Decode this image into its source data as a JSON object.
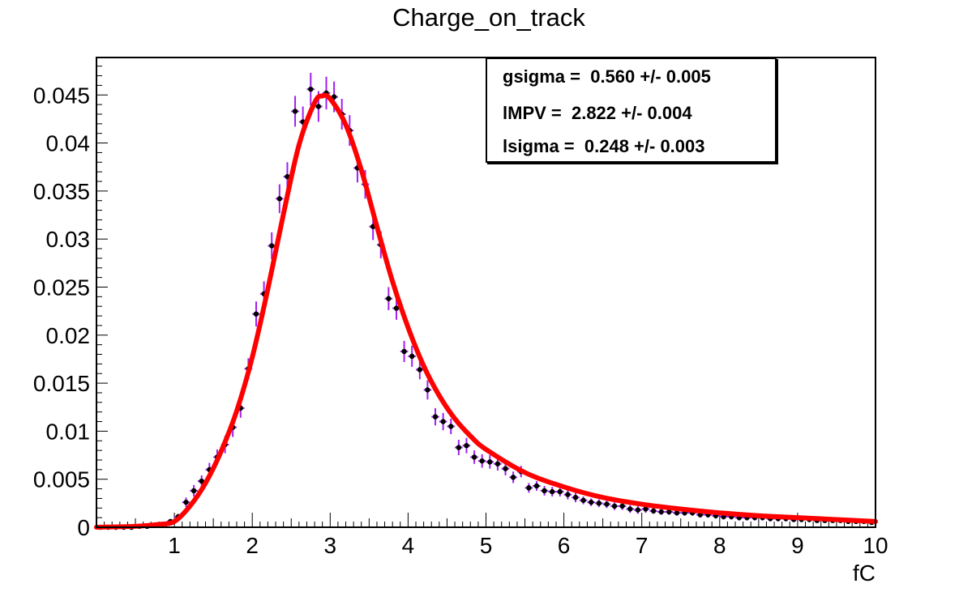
{
  "chart_data": {
    "type": "scatter",
    "title": "Charge_on_track",
    "xlabel": "fC",
    "ylabel": "",
    "xlim": [
      0,
      10
    ],
    "ylim": [
      0,
      0.0489
    ],
    "grid": false,
    "x_ticks": [
      1,
      2,
      3,
      4,
      5,
      6,
      7,
      8,
      9,
      10
    ],
    "y_ticks": [
      0,
      0.005,
      0.01,
      0.015,
      0.02,
      0.025,
      0.03,
      0.035,
      0.04,
      0.045
    ],
    "y_tick_labels": [
      "0",
      "0.005",
      "0.01",
      "0.015",
      "0.02",
      "0.025",
      "0.03",
      "0.035",
      "0.04",
      "0.045"
    ],
    "series": [
      {
        "kind": "data_points_with_error_bars",
        "marker_color": "#000000",
        "errorbar_color": "#a020f0",
        "x": [
          0.05,
          0.15,
          0.25,
          0.35,
          0.45,
          0.55,
          0.65,
          0.75,
          0.85,
          0.95,
          1.05,
          1.15,
          1.25,
          1.35,
          1.45,
          1.55,
          1.65,
          1.75,
          1.85,
          1.95,
          2.05,
          2.15,
          2.25,
          2.35,
          2.45,
          2.55,
          2.65,
          2.75,
          2.85,
          2.95,
          3.05,
          3.15,
          3.25,
          3.35,
          3.45,
          3.55,
          3.65,
          3.75,
          3.85,
          3.95,
          4.05,
          4.15,
          4.25,
          4.35,
          4.45,
          4.55,
          4.65,
          4.75,
          4.85,
          4.95,
          5.05,
          5.15,
          5.25,
          5.35,
          5.45,
          5.55,
          5.65,
          5.75,
          5.85,
          5.95,
          6.05,
          6.15,
          6.25,
          6.35,
          6.45,
          6.55,
          6.65,
          6.75,
          6.85,
          6.95,
          7.05,
          7.15,
          7.25,
          7.35,
          7.45,
          7.55,
          7.65,
          7.75,
          7.85,
          7.95,
          8.05,
          8.15,
          8.25,
          8.35,
          8.45,
          8.55,
          8.65,
          8.75,
          8.85,
          8.95,
          9.05,
          9.15,
          9.25,
          9.35,
          9.45,
          9.55,
          9.65,
          9.75,
          9.85,
          9.95
        ],
        "y": [
          0,
          0,
          0,
          0,
          0,
          0.0001,
          0.0001,
          0.0002,
          0.0003,
          0.0006,
          0.0011,
          0.0026,
          0.0038,
          0.0048,
          0.006,
          0.0073,
          0.0086,
          0.0104,
          0.0124,
          0.0165,
          0.0222,
          0.0243,
          0.0293,
          0.0342,
          0.0365,
          0.0433,
          0.0422,
          0.0456,
          0.0438,
          0.0452,
          0.0448,
          0.043,
          0.0413,
          0.0374,
          0.0357,
          0.0313,
          0.0294,
          0.0238,
          0.0228,
          0.0183,
          0.0178,
          0.0164,
          0.0143,
          0.0115,
          0.011,
          0.0105,
          0.0083,
          0.0085,
          0.0073,
          0.0069,
          0.0068,
          0.0066,
          0.0061,
          0.0052,
          0.0058,
          0.0041,
          0.0043,
          0.0038,
          0.0037,
          0.0037,
          0.0034,
          0.0031,
          0.0028,
          0.0026,
          0.0025,
          0.0024,
          0.0022,
          0.0022,
          0.0019,
          0.0018,
          0.0019,
          0.0017,
          0.0016,
          0.0016,
          0.0015,
          0.0015,
          0.0015,
          0.0013,
          0.0013,
          0.0012,
          0.0011,
          0.0011,
          0.001,
          0.001,
          0.001,
          0.001,
          0.0009,
          0.0009,
          0.0009,
          0.0008,
          0.0008,
          0.0008,
          0.0007,
          0.0007,
          0.0007,
          0.0007,
          0.0006,
          0.0006,
          0.0006,
          0.0005
        ],
        "err": [
          0,
          0,
          0,
          0,
          0,
          0.0001,
          0.0001,
          0.0001,
          0.0001,
          0.0002,
          0.0003,
          0.0005,
          0.0006,
          0.0006,
          0.0007,
          0.0008,
          0.0009,
          0.001,
          0.001,
          0.0011,
          0.0013,
          0.0013,
          0.0014,
          0.0015,
          0.0015,
          0.0016,
          0.0016,
          0.0017,
          0.0016,
          0.0017,
          0.0016,
          0.0016,
          0.0016,
          0.0015,
          0.0015,
          0.0014,
          0.0014,
          0.0012,
          0.0012,
          0.0011,
          0.0011,
          0.001,
          0.001,
          0.0009,
          0.0009,
          0.0008,
          0.0008,
          0.0008,
          0.0007,
          0.0007,
          0.0007,
          0.0007,
          0.0007,
          0.0006,
          0.0006,
          0.0005,
          0.0005,
          0.0005,
          0.0005,
          0.0005,
          0.0005,
          0.0005,
          0.0004,
          0.0004,
          0.0004,
          0.0004,
          0.0004,
          0.0004,
          0.0004,
          0.0004,
          0.0004,
          0.0003,
          0.0003,
          0.0003,
          0.0003,
          0.0003,
          0.0003,
          0.0003,
          0.0003,
          0.0003,
          0.0003,
          0.0003,
          0.0003,
          0.0003,
          0.0003,
          0.0003,
          0.0003,
          0.0003,
          0.0003,
          0.0002,
          0.0002,
          0.0002,
          0.0002,
          0.0002,
          0.0002,
          0.0002,
          0.0002,
          0.0002,
          0.0002,
          0.0002
        ]
      },
      {
        "kind": "fit_curve",
        "color": "#ff0000",
        "x": [
          0,
          0.5,
          0.8,
          1.0,
          1.2,
          1.4,
          1.6,
          1.8,
          2.0,
          2.2,
          2.4,
          2.6,
          2.8,
          2.9,
          3.0,
          3.2,
          3.4,
          3.6,
          3.8,
          4.0,
          4.2,
          4.4,
          4.6,
          4.8,
          5.0,
          5.5,
          6.0,
          6.5,
          7.0,
          7.5,
          8.0,
          8.5,
          9.0,
          9.5,
          10.0
        ],
        "y": [
          0,
          0.0001,
          0.0003,
          0.0006,
          0.0022,
          0.0046,
          0.0079,
          0.0121,
          0.0177,
          0.0248,
          0.0326,
          0.0398,
          0.0442,
          0.0449,
          0.0446,
          0.0419,
          0.0372,
          0.0313,
          0.0256,
          0.0208,
          0.0168,
          0.0137,
          0.0113,
          0.0095,
          0.0081,
          0.0057,
          0.0042,
          0.0031,
          0.0024,
          0.0019,
          0.0015,
          0.0012,
          0.001,
          0.0008,
          0.0006
        ]
      }
    ],
    "stats_box": [
      "gsigma =  0.560 +/- 0.005",
      "lMPV =  2.822 +/- 0.004",
      "lsigma =  0.248 +/- 0.003"
    ]
  }
}
